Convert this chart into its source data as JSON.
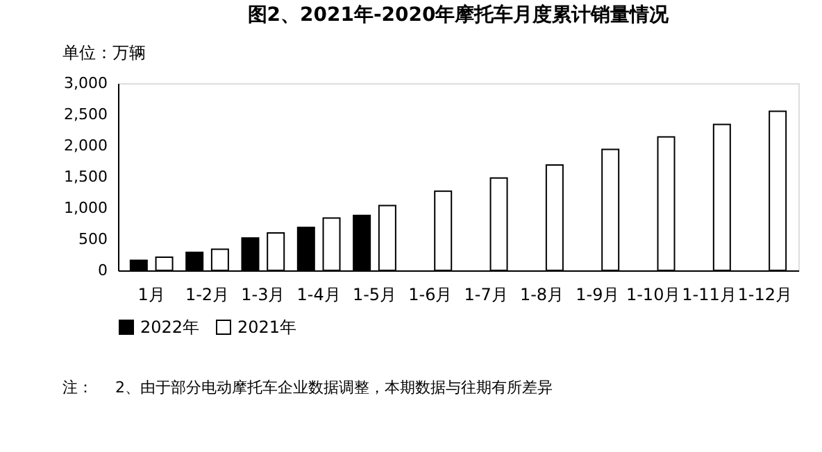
{
  "chart_data": {
    "type": "bar",
    "title": "图2、2021年-2020年摩托车月度累计销量情况",
    "categories": [
      "1月",
      "1-2月",
      "1-3月",
      "1-4月",
      "1-5月",
      "1-6月",
      "1-7月",
      "1-8月",
      "1-9月",
      "1-10月",
      "1-11月",
      "1-12月"
    ],
    "series": [
      {
        "name": "2022年",
        "color": "#000000",
        "values": [
          160,
          290,
          520,
          690,
          880,
          null,
          null,
          null,
          null,
          null,
          null,
          null
        ]
      },
      {
        "name": "2021年",
        "color": "#ffffff",
        "values": [
          210,
          340,
          600,
          840,
          1040,
          1270,
          1480,
          1690,
          1940,
          2140,
          2340,
          2550
        ]
      }
    ],
    "ylim": [
      0,
      3000
    ],
    "yticks": [
      {
        "value": 0,
        "label": "0"
      },
      {
        "value": 500,
        "label": "500"
      },
      {
        "value": 1000,
        "label": "1,000"
      },
      {
        "value": 1500,
        "label": "1,500"
      },
      {
        "value": 2000,
        "label": "2,000"
      },
      {
        "value": 2500,
        "label": "2,500"
      },
      {
        "value": 3000,
        "label": "3,000"
      }
    ],
    "grid": false,
    "legend": "bottom",
    "annotations": [
      "单位：万辆",
      "注：",
      "2、由于部分电动摩托车企业数据调整，本期数据与往期有所差异"
    ]
  }
}
